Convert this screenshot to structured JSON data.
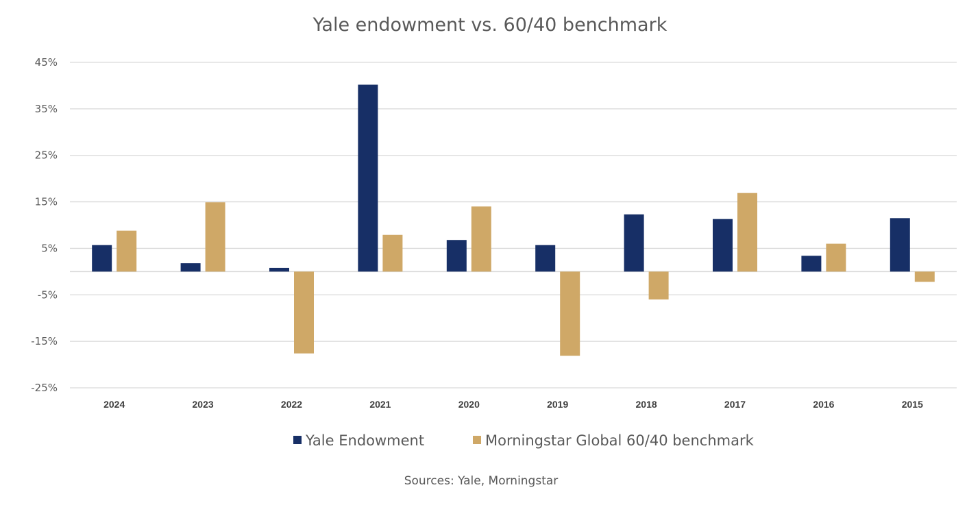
{
  "chart_data": {
    "type": "bar",
    "title": "Yale endowment vs. 60/40 benchmark",
    "categories": [
      "2024",
      "2023",
      "2022",
      "2021",
      "2020",
      "2019",
      "2018",
      "2017",
      "2016",
      "2015"
    ],
    "series": [
      {
        "name": "Yale Endowment",
        "color": "#172f66",
        "values": [
          5.7,
          1.8,
          0.8,
          40.2,
          6.8,
          5.7,
          12.3,
          11.3,
          3.4,
          11.5
        ]
      },
      {
        "name": "Morningstar Global 60/40 benchmark",
        "color": "#cfa867",
        "values": [
          8.8,
          14.9,
          -17.6,
          7.9,
          14.0,
          -18.1,
          -6.0,
          16.9,
          6.0,
          -2.2
        ]
      }
    ],
    "ylim": [
      -25,
      45
    ],
    "yticks": [
      45,
      35,
      25,
      15,
      5,
      -5,
      -15,
      -25
    ],
    "ytick_labels": [
      "45%",
      "35%",
      "25%",
      "15%",
      "5%",
      "-5%",
      "-15%",
      "-25%"
    ],
    "grid": true,
    "legend_position": "bottom",
    "source": "Sources: Yale, Morningstar"
  }
}
